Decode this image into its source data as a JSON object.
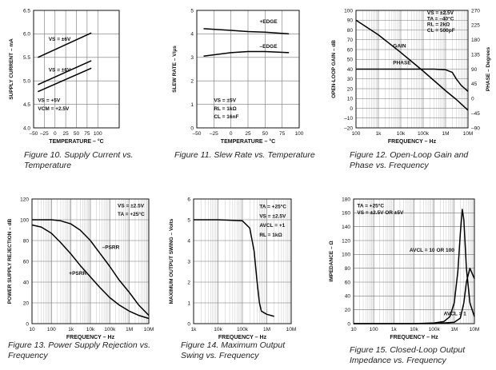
{
  "chart_data": [
    {
      "id": "fig10",
      "type": "line",
      "caption": "Figure 10. Supply Current vs. Temperature",
      "xlabel": "TEMPERATURE – °C",
      "ylabel": "SUPPLY CURRENT – mA",
      "xscale": "linear",
      "xlim": [
        -50,
        150
      ],
      "ylim": [
        4.0,
        6.5
      ],
      "xticks": [
        -50,
        -25,
        0,
        25,
        50,
        75,
        100
      ],
      "xticklabels": [
        "–50",
        "–25",
        "0",
        "25",
        "50",
        "75",
        "100"
      ],
      "yticks": [
        4.0,
        4.5,
        5.0,
        5.5,
        6.0,
        6.5
      ],
      "yticklabels": [
        "4.0",
        "4.5",
        "5.0",
        "5.5",
        "6.0",
        "6.5"
      ],
      "series": [
        {
          "name": "VS = ±6V (upper)",
          "x": [
            -40,
            85
          ],
          "values": [
            5.5,
            6.02
          ]
        },
        {
          "name": "VS = ±6V (lower)",
          "x": [
            -40,
            85
          ],
          "values": [
            4.92,
            5.43
          ]
        },
        {
          "name": "VS = +5V",
          "x": [
            -40,
            85
          ],
          "values": [
            4.77,
            5.27
          ]
        }
      ],
      "annotations": [
        {
          "text": "VS = ±6V",
          "x": -15,
          "y": 5.85
        },
        {
          "text": "VS = ±6V",
          "x": -15,
          "y": 5.2
        },
        {
          "text": "VS = +5V",
          "x": -40,
          "y": 4.55
        },
        {
          "text": "VCM = +2.5V",
          "x": -40,
          "y": 4.37
        }
      ]
    },
    {
      "id": "fig11",
      "type": "line",
      "caption": "Figure 11. Slew Rate vs. Temperature",
      "xlabel": "TEMPERATURE – °C",
      "ylabel": "SLEW RATE – V/μs",
      "xscale": "linear",
      "xlim": [
        -50,
        100
      ],
      "ylim": [
        0,
        5
      ],
      "xticks": [
        -50,
        -25,
        0,
        25,
        50,
        75,
        100
      ],
      "xticklabels": [
        "–50",
        "–25",
        "0",
        "25",
        "50",
        "75",
        "100"
      ],
      "yticks": [
        0,
        1,
        2,
        3,
        4,
        5
      ],
      "yticklabels": [
        "0",
        "1",
        "2",
        "3",
        "4",
        "5"
      ],
      "series": [
        {
          "name": "+EDGE",
          "x": [
            -40,
            0,
            25,
            50,
            85
          ],
          "values": [
            4.22,
            4.15,
            4.1,
            4.07,
            4.0
          ]
        },
        {
          "name": "–EDGE",
          "x": [
            -40,
            0,
            25,
            50,
            85
          ],
          "values": [
            3.05,
            3.2,
            3.25,
            3.25,
            3.2
          ]
        }
      ],
      "annotations": [
        {
          "text": "+EDGE",
          "x": 42,
          "y": 4.45
        },
        {
          "text": "–EDGE",
          "x": 42,
          "y": 3.4
        },
        {
          "text": "VS = ±5V",
          "x": -25,
          "y": 1.1
        },
        {
          "text": "RL = 1kΩ",
          "x": -25,
          "y": 0.75
        },
        {
          "text": "CL = 16nF",
          "x": -25,
          "y": 0.4
        }
      ]
    },
    {
      "id": "fig12",
      "type": "line",
      "caption": "Figure 12. Open-Loop Gain and Phase vs. Frequency",
      "xlabel": "FREQUENCY – Hz",
      "ylabel": "OPEN-LOOP GAIN – dB",
      "y2label": "PHASE – Degrees",
      "xscale": "log",
      "xlim": [
        100,
        10000000
      ],
      "ylim": [
        -20,
        100
      ],
      "y2lim": [
        -90,
        270
      ],
      "xticks": [
        100,
        1000,
        10000,
        100000,
        1000000,
        10000000
      ],
      "xticklabels": [
        "100",
        "1k",
        "10k",
        "100k",
        "1M",
        "10M"
      ],
      "yticks": [
        -20,
        -10,
        0,
        10,
        20,
        30,
        40,
        50,
        60,
        70,
        80,
        90,
        100
      ],
      "yticklabels": [
        "–20",
        "–10",
        "0",
        "10",
        "20",
        "30",
        "40",
        "50",
        "60",
        "70",
        "80",
        "90",
        "100"
      ],
      "y2ticks": [
        -90,
        -45,
        0,
        45,
        90,
        135,
        180,
        225,
        270
      ],
      "y2ticklabels": [
        "–90",
        "–45",
        "0",
        "45",
        "90",
        "135",
        "180",
        "225",
        "270"
      ],
      "series": [
        {
          "name": "GAIN",
          "axis": "left",
          "x": [
            100,
            1000,
            10000,
            100000,
            1000000,
            3000000,
            10000000
          ],
          "values": [
            90,
            75,
            57,
            38,
            18,
            9,
            -2
          ]
        },
        {
          "name": "PHASE",
          "axis": "right",
          "x": [
            100,
            100000,
            300000,
            1000000,
            2000000,
            3000000,
            5000000,
            10000000
          ],
          "values": [
            90,
            90,
            90,
            88,
            80,
            60,
            40,
            22
          ]
        }
      ],
      "annotations": [
        {
          "text": "VS = ±2.5V",
          "x": 150000,
          "y": 96
        },
        {
          "text": "TA = –40°C",
          "x": 150000,
          "y": 90
        },
        {
          "text": "RL = 2kΩ",
          "x": 150000,
          "y": 84
        },
        {
          "text": "CL = 500pF",
          "x": 150000,
          "y": 78
        },
        {
          "text": "GAIN",
          "x": 4500,
          "y": 62
        },
        {
          "text": "PHASE",
          "x": 4500,
          "y": 45
        }
      ]
    },
    {
      "id": "fig13",
      "type": "line",
      "caption": "Figure 13. Power Supply Rejection vs. Frequency",
      "xlabel": "FREQUENCY – Hz",
      "ylabel": "POWER SUPPLY REJECTION – dB",
      "xscale": "log",
      "xlim": [
        10,
        10000000
      ],
      "ylim": [
        0,
        120
      ],
      "xticks": [
        10,
        100,
        1000,
        10000,
        100000,
        1000000,
        10000000
      ],
      "xticklabels": [
        "10",
        "100",
        "1k",
        "10k",
        "100k",
        "1M",
        "10M"
      ],
      "yticks": [
        0,
        20,
        40,
        60,
        80,
        100,
        120
      ],
      "yticklabels": [
        "0",
        "20",
        "40",
        "60",
        "80",
        "100",
        "120"
      ],
      "series": [
        {
          "name": "–PSRR",
          "x": [
            10,
            100,
            300,
            1000,
            3000,
            10000,
            30000,
            100000,
            300000,
            1000000,
            3000000,
            10000000
          ],
          "values": [
            100,
            100,
            99,
            96,
            90,
            80,
            68,
            55,
            42,
            30,
            18,
            8
          ]
        },
        {
          "name": "+PSRR",
          "x": [
            10,
            30,
            100,
            300,
            1000,
            3000,
            10000,
            30000,
            100000,
            300000,
            1000000,
            3000000,
            10000000
          ],
          "values": [
            95,
            93,
            87,
            78,
            67,
            56,
            45,
            35,
            25,
            18,
            12,
            8,
            5
          ]
        }
      ],
      "annotations": [
        {
          "text": "VS = ±2.5V",
          "x": 250000,
          "y": 112
        },
        {
          "text": "TA = +25°C",
          "x": 250000,
          "y": 104
        },
        {
          "text": "–PSRR",
          "x": 40000,
          "y": 72
        },
        {
          "text": "+PSRR",
          "x": 800,
          "y": 47
        }
      ]
    },
    {
      "id": "fig14",
      "type": "line",
      "caption": "Figure 14. Maximum Output Swing vs. Frequency",
      "xlabel": "FREQUENCY – Hz",
      "ylabel": "MAXIMUM OUTPUT SWING – Volts",
      "xscale": "log",
      "xlim": [
        1000,
        10000000
      ],
      "ylim": [
        0,
        6
      ],
      "xticks": [
        1000,
        10000,
        100000,
        1000000,
        10000000
      ],
      "xticklabels": [
        "1k",
        "10k",
        "100k",
        "1M",
        "10M"
      ],
      "yticks": [
        0,
        1,
        2,
        3,
        4,
        5,
        6
      ],
      "yticklabels": [
        "0",
        "1",
        "2",
        "3",
        "4",
        "5",
        "6"
      ],
      "series": [
        {
          "name": "Output swing",
          "x": [
            1000,
            10000,
            100000,
            200000,
            300000,
            400000,
            500000,
            600000,
            1000000,
            2000000
          ],
          "values": [
            5,
            5,
            4.95,
            4.6,
            3.5,
            2.0,
            1.0,
            0.6,
            0.45,
            0.35
          ]
        }
      ],
      "annotations": [
        {
          "text": "TA = +25°C",
          "x": 500000,
          "y": 5.55
        },
        {
          "text": "VS = ±2.5V",
          "x": 500000,
          "y": 5.1
        },
        {
          "text": "AVCL = +1",
          "x": 500000,
          "y": 4.65
        },
        {
          "text": "RL = 1kΩ",
          "x": 500000,
          "y": 4.2
        }
      ]
    },
    {
      "id": "fig15",
      "type": "line",
      "caption": "Figure 15. Closed-Loop Output Impedance vs. Frequency",
      "xlabel": "FREQUENCY – Hz",
      "ylabel": "IMPEDANCE – Ω",
      "xscale": "log",
      "xlim": [
        10,
        10000000
      ],
      "ylim": [
        0,
        180
      ],
      "xticks": [
        10,
        100,
        1000,
        10000,
        100000,
        1000000,
        10000000
      ],
      "xticklabels": [
        "10",
        "100",
        "1k",
        "10k",
        "100k",
        "1M",
        "10M"
      ],
      "yticks": [
        0,
        20,
        40,
        60,
        80,
        100,
        120,
        140,
        160,
        180
      ],
      "yticklabels": [
        "0",
        "20",
        "40",
        "60",
        "80",
        "100",
        "120",
        "140",
        "160",
        "180"
      ],
      "series": [
        {
          "name": "AVCL = 10 OR 100",
          "x": [
            10,
            10000,
            100000,
            300000,
            600000,
            1000000,
            1500000,
            2000000,
            2500000,
            3000000,
            4000000,
            6000000,
            10000000
          ],
          "values": [
            0,
            0,
            1,
            3,
            10,
            30,
            75,
            130,
            165,
            150,
            80,
            30,
            10
          ]
        },
        {
          "name": "AVCL = 1",
          "x": [
            10,
            100000,
            1000000,
            2000000,
            3000000,
            4000000,
            6000000,
            10000000
          ],
          "values": [
            0,
            0,
            2,
            8,
            30,
            60,
            80,
            65
          ]
        }
      ],
      "annotations": [
        {
          "text": "TA = +25°C",
          "x": 15,
          "y": 168
        },
        {
          "text": "VS = ±2.5V OR ±5V",
          "x": 15,
          "y": 158
        },
        {
          "text": "AVCL = 10 OR 100",
          "x": 6000,
          "y": 104
        },
        {
          "text": "AVCL = 1",
          "x": 300000,
          "y": 12
        }
      ]
    }
  ]
}
